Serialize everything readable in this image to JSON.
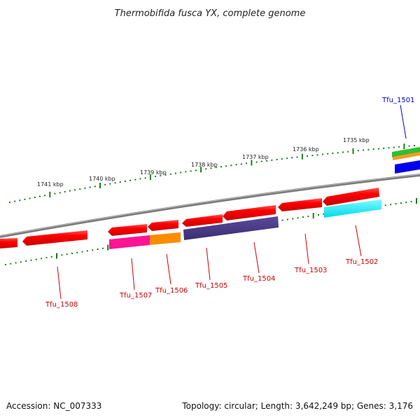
{
  "title": "Thermobifida fusca YX, complete genome",
  "footer": {
    "accession": "Accession: NC_007333",
    "topology": "Topology: circular; Length: 3,642,249 bp; Genes: 3,176"
  },
  "colors": {
    "backbone": "#7a7a7a",
    "tick": "#1e7a1e",
    "label_red": "#cc0000",
    "label_blue": "#0000cc"
  },
  "kbp_ticks": [
    "1741 kbp",
    "1740 kbp",
    "1739 kbp",
    "1738 kbp",
    "1737 kbp",
    "1736 kbp",
    "1735 kbp"
  ],
  "genes": [
    {
      "label": "Tfu_1501",
      "color": "#0000cc"
    },
    {
      "label": "Tfu_1502",
      "color": "#cc0000"
    },
    {
      "label": "Tfu_1503",
      "color": "#cc0000"
    },
    {
      "label": "Tfu_1504",
      "color": "#cc0000"
    },
    {
      "label": "Tfu_1505",
      "color": "#cc0000"
    },
    {
      "label": "Tfu_1506",
      "color": "#cc0000"
    },
    {
      "label": "Tfu_1507",
      "color": "#cc0000"
    },
    {
      "label": "Tfu_1508",
      "color": "#cc0000"
    }
  ]
}
